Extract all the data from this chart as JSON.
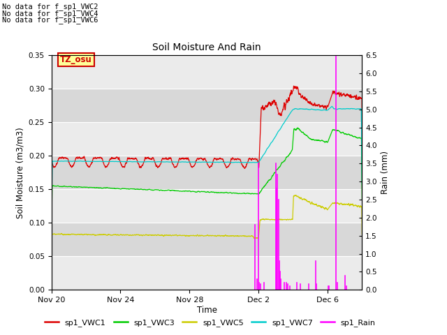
{
  "title": "Soil Moisture And Rain",
  "ylabel_left": "Soil Moisture (m3/m3)",
  "ylabel_right": "Rain (mm)",
  "xlabel": "Time",
  "no_data_text": [
    "No data for f_sp1_VWC2",
    "No data for f_sp1_VWC4",
    "No data for f_sp1_VWC6"
  ],
  "tz_label": "TZ_osu",
  "ylim_left": [
    0.0,
    0.35
  ],
  "ylim_right": [
    0.0,
    6.5
  ],
  "yticks_left": [
    0.0,
    0.05,
    0.1,
    0.15,
    0.2,
    0.25,
    0.3,
    0.35
  ],
  "yticks_right": [
    0.0,
    0.5,
    1.0,
    1.5,
    2.0,
    2.5,
    3.0,
    3.5,
    4.0,
    4.5,
    5.0,
    5.5,
    6.0,
    6.5
  ],
  "xtick_labels": [
    "Nov 20",
    "Nov 24",
    "Nov 28",
    "Dec 2",
    "Dec 6"
  ],
  "xtick_positions": [
    0,
    4,
    8,
    12,
    16
  ],
  "plot_bg_bands": [
    [
      0.0,
      0.05
    ],
    [
      0.1,
      0.15
    ],
    [
      0.2,
      0.25
    ],
    [
      0.3,
      0.35
    ]
  ],
  "plot_bg_light": "#ebebeb",
  "plot_bg_dark": "#d8d8d8",
  "colors": {
    "VWC1": "#dd0000",
    "VWC3": "#00cc00",
    "VWC5": "#cccc00",
    "VWC7": "#00cccc",
    "Rain": "#ff00ff"
  },
  "legend_labels": [
    "sp1_VWC1",
    "sp1_VWC3",
    "sp1_VWC5",
    "sp1_VWC7",
    "sp1_Rain"
  ]
}
